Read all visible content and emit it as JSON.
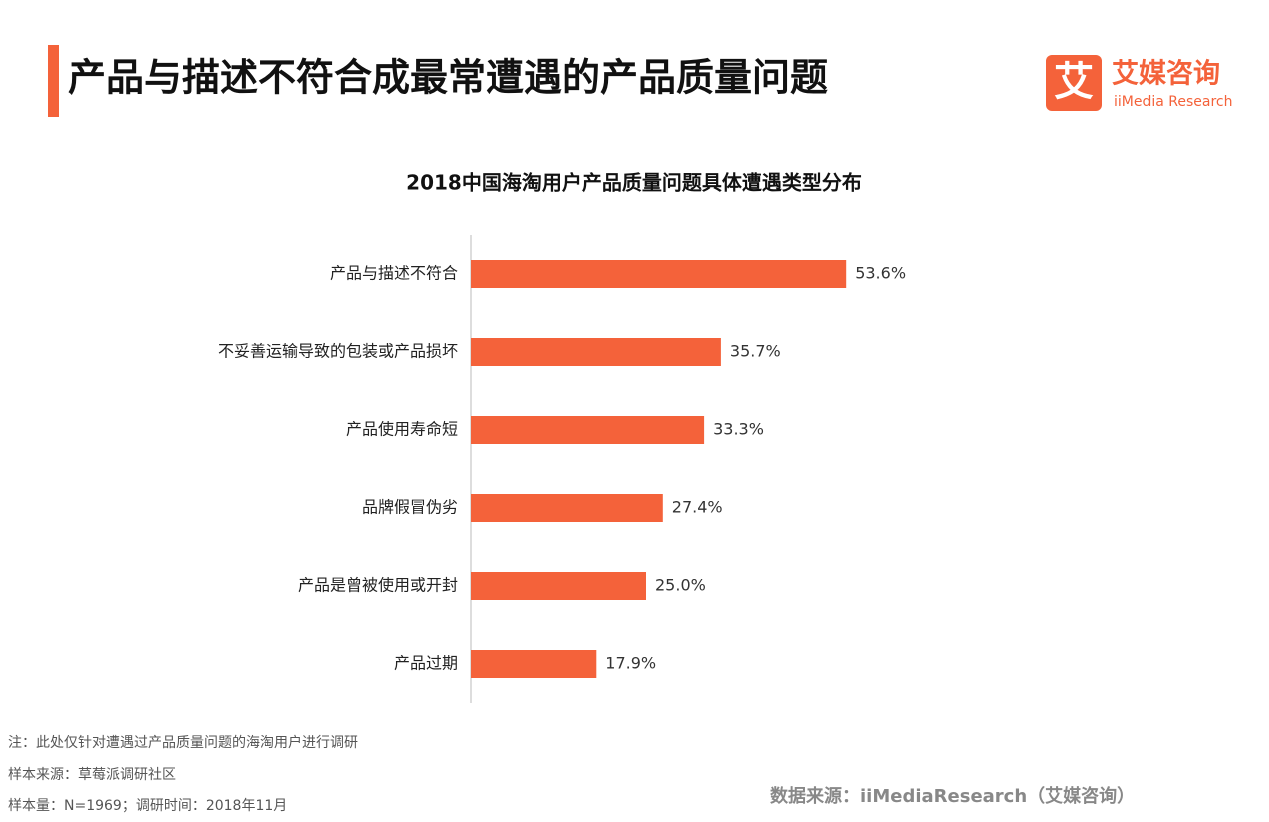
{
  "header": {
    "title": "产品与描述不符合成最常遭遇的产品质量问题",
    "logo_mark": "艾",
    "logo_cn": "艾媒咨询",
    "logo_en": "iiMedia Research"
  },
  "chart_data": {
    "type": "bar",
    "orientation": "horizontal",
    "title": "2018中国海淘用户产品质量问题具体遭遇类型分布",
    "categories": [
      "产品与描述不符合",
      "不妥善运输导致的包装或产品损坏",
      "产品使用寿命短",
      "品牌假冒伪劣",
      "产品是曾被使用或开封",
      "产品过期"
    ],
    "values": [
      53.6,
      35.7,
      33.3,
      27.4,
      25.0,
      17.9
    ],
    "value_labels": [
      "53.6%",
      "35.7%",
      "33.3%",
      "27.4%",
      "25.0%",
      "17.9%"
    ],
    "color": "#f4623a"
  },
  "footer": {
    "notes": [
      "注：此处仅针对遭遇过产品质量问题的海淘用户进行调研",
      "样本来源：草莓派调研社区",
      "样本量：N=1969；调研时间：2018年11月"
    ],
    "source": "数据来源：iiMediaResearch（艾媒咨询）"
  }
}
